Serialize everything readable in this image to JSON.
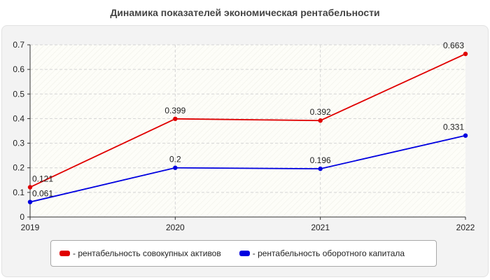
{
  "title": "Динамика показателей экономическая рентабельности",
  "chart_data": {
    "type": "line",
    "title": "Динамика показателей экономическая рентабельности",
    "categories": [
      "2019",
      "2020",
      "2021",
      "2022"
    ],
    "ylim": [
      0,
      0.7
    ],
    "yticks": [
      "0",
      "0.1",
      "0.2",
      "0.3",
      "0.4",
      "0.5",
      "0.6",
      "0.7"
    ],
    "grid": true,
    "legend_position": "bottom",
    "series": [
      {
        "name": "- рентабельность совокупных активов",
        "color": "#e00000",
        "values": [
          0.121,
          0.399,
          0.392,
          0.663
        ],
        "labels": [
          "0.121",
          "0.399",
          "0.392",
          "0.663"
        ]
      },
      {
        "name": "- рентабельность оборотного капитала",
        "color": "#0000e0",
        "values": [
          0.061,
          0.2,
          0.196,
          0.331
        ],
        "labels": [
          "0.061",
          "0.2",
          "0.196",
          "0.331"
        ]
      }
    ]
  }
}
